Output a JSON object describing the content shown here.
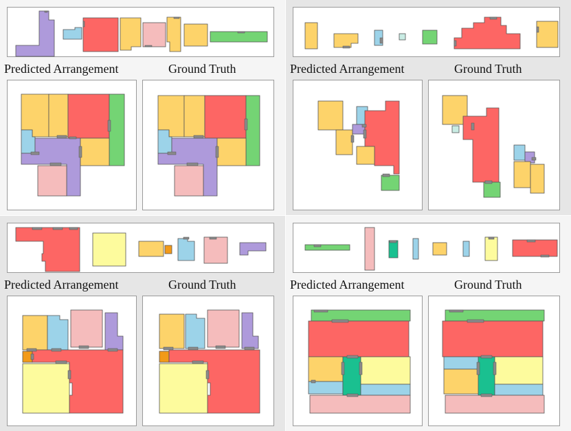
{
  "labels": {
    "predicted": "Predicted  Arrangement",
    "ground_truth": "Ground Truth"
  },
  "colors": {
    "purple": "#ae9adb",
    "blue": "#9cd3e9",
    "red": "#fd6664",
    "yellow": "#fdd36a",
    "pink": "#f5bcbc",
    "green": "#74d474",
    "light_yellow": "#fdfb9d",
    "orange": "#f29a18",
    "teal": "#1ac090",
    "light_teal": "#c9ece4"
  },
  "examples": [
    {
      "id": "example-1"
    },
    {
      "id": "example-2"
    },
    {
      "id": "example-3"
    },
    {
      "id": "example-4"
    }
  ]
}
